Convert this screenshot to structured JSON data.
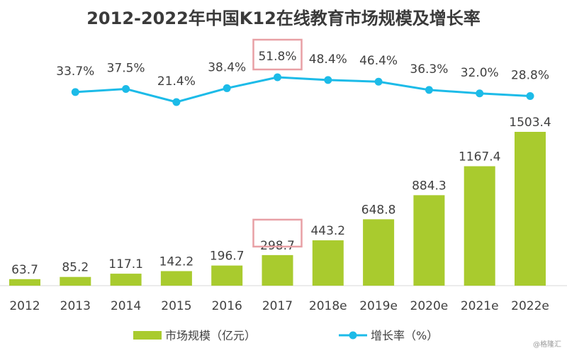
{
  "chart_data": {
    "type": "bar+line",
    "title": "2012-2022年中国K12在线教育市场规模及增长率",
    "categories": [
      "2012",
      "2013",
      "2014",
      "2015",
      "2016",
      "2017",
      "2018e",
      "2019e",
      "2020e",
      "2021e",
      "2022e"
    ],
    "series": [
      {
        "name": "市场规模（亿元）",
        "type": "bar",
        "color": "#a9cb2e",
        "values": [
          63.7,
          85.2,
          117.1,
          142.2,
          196.7,
          298.7,
          443.2,
          648.8,
          884.3,
          1167.4,
          1503.4
        ],
        "labels": [
          "63.7",
          "85.2",
          "117.1",
          "142.2",
          "196.7",
          "298.7",
          "443.2",
          "648.8",
          "884.3",
          "1167.4",
          "1503.4"
        ]
      },
      {
        "name": "增长率（%）",
        "type": "line",
        "color": "#1cbbe8",
        "values": [
          null,
          33.7,
          37.5,
          21.4,
          38.4,
          51.8,
          48.4,
          46.4,
          36.3,
          32.0,
          28.8
        ],
        "labels": [
          "",
          "33.7%",
          "37.5%",
          "21.4%",
          "38.4%",
          "51.8%",
          "48.4%",
          "46.4%",
          "36.3%",
          "32.0%",
          "28.8%"
        ]
      }
    ],
    "highlight_index": 5,
    "highlight_color": "#e8a0a5",
    "legend_position": "bottom",
    "grid": false
  },
  "watermark": "@格隆汇"
}
